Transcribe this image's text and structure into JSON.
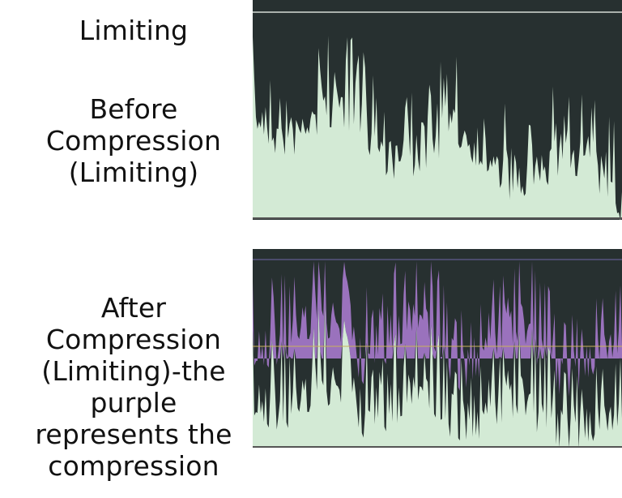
{
  "title": "Limiting",
  "before_label": [
    "Before",
    "Compression",
    "(Limiting)"
  ],
  "after_label": [
    "After",
    "Compression",
    "(Limiting)-the",
    "purple",
    "represents the",
    "compression"
  ],
  "colors": {
    "background_dark": "#273030",
    "waveform_fill": "#d3ead5",
    "compression_fill": "#9a72bd",
    "threshold_line": "#d6dcd6",
    "limit_line": "#c9b25a",
    "top_guide": "#6f66a9",
    "baseline": "#555555"
  }
}
